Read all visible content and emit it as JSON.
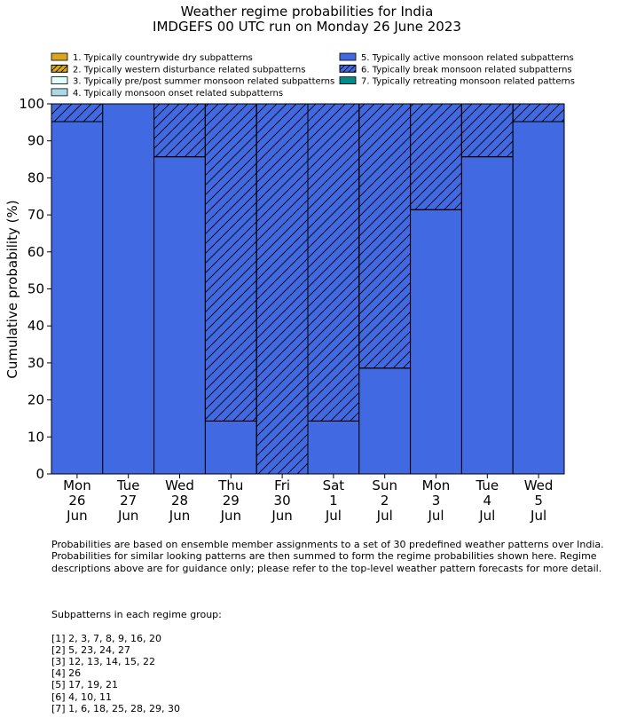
{
  "chart_data": {
    "type": "bar",
    "stacked": true,
    "title": "Weather regime probabilities for India",
    "subtitle": "IMDGEFS 00 UTC run on Monday 26 June 2023",
    "ylabel": "Cumulative probability (%)",
    "xlabel": "",
    "ylim": [
      0,
      100
    ],
    "yticks": [
      0,
      10,
      20,
      30,
      40,
      50,
      60,
      70,
      80,
      90,
      100
    ],
    "categories": [
      [
        "Mon",
        "26",
        "Jun"
      ],
      [
        "Tue",
        "27",
        "Jun"
      ],
      [
        "Wed",
        "28",
        "Jun"
      ],
      [
        "Thu",
        "29",
        "Jun"
      ],
      [
        "Fri",
        "30",
        "Jun"
      ],
      [
        "Sat",
        "1",
        "Jul"
      ],
      [
        "Sun",
        "2",
        "Jul"
      ],
      [
        "Mon",
        "3",
        "Jul"
      ],
      [
        "Tue",
        "4",
        "Jul"
      ],
      [
        "Wed",
        "5",
        "Jul"
      ]
    ],
    "legend": [
      {
        "label": "1. Typically countrywide dry subpatterns",
        "color": "#DAA520",
        "hatch": false
      },
      {
        "label": "2. Typically western disturbance related subpatterns",
        "color": "#DAA520",
        "hatch": true
      },
      {
        "label": "3. Typically pre/post summer monsoon related subpatterns",
        "color": "#E0FFFF",
        "hatch": false
      },
      {
        "label": "4. Typically monsoon onset related subpatterns",
        "color": "#ADD8E6",
        "hatch": false
      },
      {
        "label": "5. Typically active monsoon related subpatterns",
        "color": "#4169E1",
        "hatch": false
      },
      {
        "label": "6. Typically break monsoon related subpatterns",
        "color": "#4169E1",
        "hatch": true
      },
      {
        "label": "7. Typically retreating monsoon related patterns",
        "color": "#008B8B",
        "hatch": false
      }
    ],
    "legend_placement": "top",
    "series": [
      {
        "name": "5. Typically active monsoon related subpatterns",
        "color": "#4169E1",
        "hatch": false,
        "values": [
          95.2,
          100,
          85.7,
          14.3,
          0,
          14.3,
          28.6,
          71.4,
          85.7,
          95.2
        ]
      },
      {
        "name": "6. Typically break monsoon related subpatterns",
        "color": "#4169E1",
        "hatch": true,
        "values": [
          4.8,
          0,
          14.3,
          85.7,
          100,
          85.7,
          71.4,
          28.6,
          14.3,
          4.8
        ]
      }
    ],
    "grid": false
  },
  "notes": {
    "description": "Probabilities are based on ensemble member assignments to a set of 30 predefined weather patterns over India.\nProbabilities for similar looking patterns are then summed to form the regime probabilities shown here. Regime\ndescriptions above are for guidance only; please refer to the top-level weather pattern forecasts for more detail.",
    "groups_title": "Subpatterns in each regime group:",
    "groups": [
      "[1] 2, 3, 7, 8, 9, 16, 20",
      "[2] 5, 23, 24, 27",
      "[3] 12, 13, 14, 15, 22",
      "[4] 26",
      "[5] 17, 19, 21",
      "[6] 4, 10, 11",
      "[7] 1, 6, 18, 25, 28, 29, 30"
    ]
  }
}
